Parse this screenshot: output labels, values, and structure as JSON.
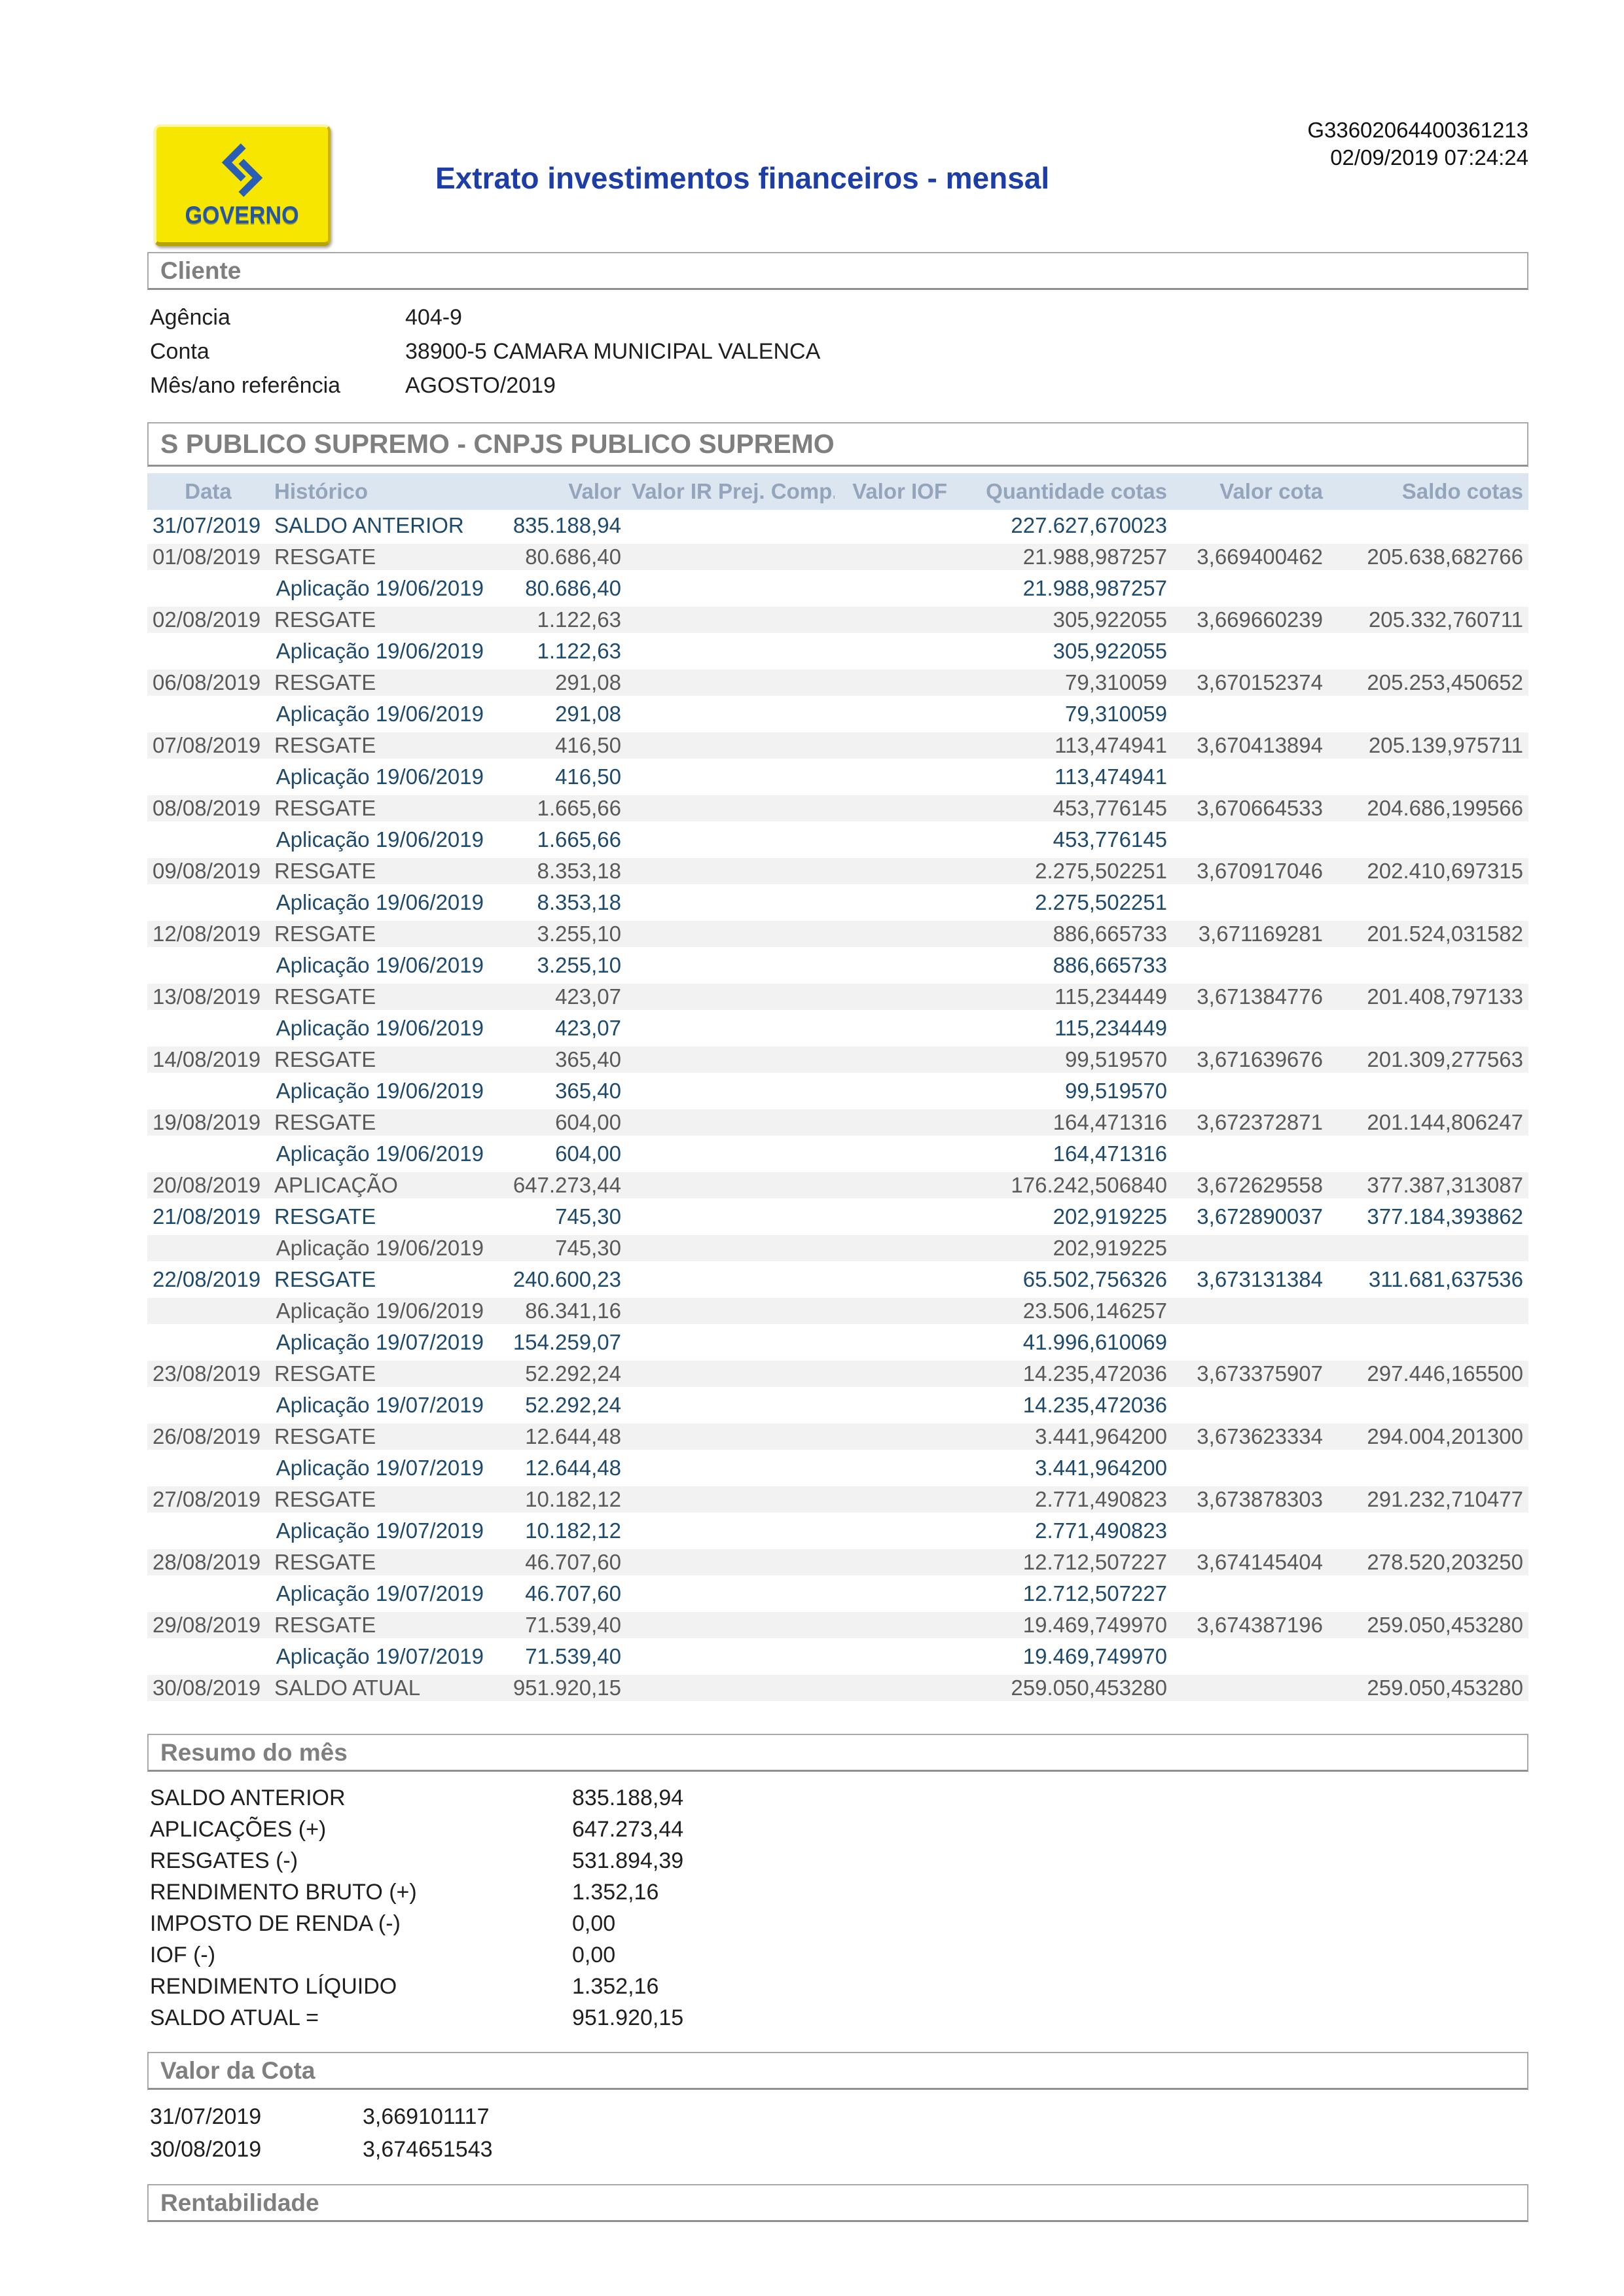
{
  "colors": {
    "title_blue": "#1c3ea6",
    "navy_text": "#1e4a6d",
    "gray_text": "#595959",
    "thead_bg": "#dce6f1",
    "thead_text": "#94a5bb",
    "section_text": "#7f7f7f",
    "zebra_bg": "#f2f2f2",
    "logo_yellow": "#f7e600",
    "logo_blue": "#2a5db5"
  },
  "header": {
    "logo_text": "GOVERNO",
    "title": "Extrato investimentos financeiros - mensal",
    "doc_code": "G33602064400361213",
    "timestamp": "02/09/2019 07:24:24"
  },
  "cliente": {
    "section_title": "Cliente",
    "fields": [
      {
        "label": "Agência",
        "value": "404-9"
      },
      {
        "label": "Conta",
        "value": "38900-5 CAMARA MUNICIPAL VALENCA"
      },
      {
        "label": "Mês/ano referência",
        "value": "AGOSTO/2019"
      }
    ]
  },
  "fund": {
    "section_title": "S PUBLICO SUPREMO - CNPJS PUBLICO SUPREMO",
    "columns": [
      "Data",
      "Histórico",
      "Valor",
      "Valor IR Prej. Comp.",
      "Valor IOF",
      "Quantidade cotas",
      "Valor cota",
      "Saldo cotas"
    ],
    "rows": [
      [
        "31/07/2019",
        "SALDO ANTERIOR",
        "835.188,94",
        "",
        "",
        "227.627,670023",
        "",
        ""
      ],
      [
        "01/08/2019",
        "RESGATE",
        "80.686,40",
        "",
        "",
        "21.988,987257",
        "3,669400462",
        "205.638,682766"
      ],
      [
        "",
        "Aplicação 19/06/2019",
        "80.686,40",
        "",
        "",
        "21.988,987257",
        "",
        ""
      ],
      [
        "02/08/2019",
        "RESGATE",
        "1.122,63",
        "",
        "",
        "305,922055",
        "3,669660239",
        "205.332,760711"
      ],
      [
        "",
        "Aplicação 19/06/2019",
        "1.122,63",
        "",
        "",
        "305,922055",
        "",
        ""
      ],
      [
        "06/08/2019",
        "RESGATE",
        "291,08",
        "",
        "",
        "79,310059",
        "3,670152374",
        "205.253,450652"
      ],
      [
        "",
        "Aplicação 19/06/2019",
        "291,08",
        "",
        "",
        "79,310059",
        "",
        ""
      ],
      [
        "07/08/2019",
        "RESGATE",
        "416,50",
        "",
        "",
        "113,474941",
        "3,670413894",
        "205.139,975711"
      ],
      [
        "",
        "Aplicação 19/06/2019",
        "416,50",
        "",
        "",
        "113,474941",
        "",
        ""
      ],
      [
        "08/08/2019",
        "RESGATE",
        "1.665,66",
        "",
        "",
        "453,776145",
        "3,670664533",
        "204.686,199566"
      ],
      [
        "",
        "Aplicação 19/06/2019",
        "1.665,66",
        "",
        "",
        "453,776145",
        "",
        ""
      ],
      [
        "09/08/2019",
        "RESGATE",
        "8.353,18",
        "",
        "",
        "2.275,502251",
        "3,670917046",
        "202.410,697315"
      ],
      [
        "",
        "Aplicação 19/06/2019",
        "8.353,18",
        "",
        "",
        "2.275,502251",
        "",
        ""
      ],
      [
        "12/08/2019",
        "RESGATE",
        "3.255,10",
        "",
        "",
        "886,665733",
        "3,671169281",
        "201.524,031582"
      ],
      [
        "",
        "Aplicação 19/06/2019",
        "3.255,10",
        "",
        "",
        "886,665733",
        "",
        ""
      ],
      [
        "13/08/2019",
        "RESGATE",
        "423,07",
        "",
        "",
        "115,234449",
        "3,671384776",
        "201.408,797133"
      ],
      [
        "",
        "Aplicação 19/06/2019",
        "423,07",
        "",
        "",
        "115,234449",
        "",
        ""
      ],
      [
        "14/08/2019",
        "RESGATE",
        "365,40",
        "",
        "",
        "99,519570",
        "3,671639676",
        "201.309,277563"
      ],
      [
        "",
        "Aplicação 19/06/2019",
        "365,40",
        "",
        "",
        "99,519570",
        "",
        ""
      ],
      [
        "19/08/2019",
        "RESGATE",
        "604,00",
        "",
        "",
        "164,471316",
        "3,672372871",
        "201.144,806247"
      ],
      [
        "",
        "Aplicação 19/06/2019",
        "604,00",
        "",
        "",
        "164,471316",
        "",
        ""
      ],
      [
        "20/08/2019",
        "APLICAÇÃO",
        "647.273,44",
        "",
        "",
        "176.242,506840",
        "3,672629558",
        "377.387,313087"
      ],
      [
        "21/08/2019",
        "RESGATE",
        "745,30",
        "",
        "",
        "202,919225",
        "3,672890037",
        "377.184,393862"
      ],
      [
        "",
        "Aplicação 19/06/2019",
        "745,30",
        "",
        "",
        "202,919225",
        "",
        ""
      ],
      [
        "22/08/2019",
        "RESGATE",
        "240.600,23",
        "",
        "",
        "65.502,756326",
        "3,673131384",
        "311.681,637536"
      ],
      [
        "",
        "Aplicação 19/06/2019",
        "86.341,16",
        "",
        "",
        "23.506,146257",
        "",
        ""
      ],
      [
        "",
        "Aplicação 19/07/2019",
        "154.259,07",
        "",
        "",
        "41.996,610069",
        "",
        ""
      ],
      [
        "23/08/2019",
        "RESGATE",
        "52.292,24",
        "",
        "",
        "14.235,472036",
        "3,673375907",
        "297.446,165500"
      ],
      [
        "",
        "Aplicação 19/07/2019",
        "52.292,24",
        "",
        "",
        "14.235,472036",
        "",
        ""
      ],
      [
        "26/08/2019",
        "RESGATE",
        "12.644,48",
        "",
        "",
        "3.441,964200",
        "3,673623334",
        "294.004,201300"
      ],
      [
        "",
        "Aplicação 19/07/2019",
        "12.644,48",
        "",
        "",
        "3.441,964200",
        "",
        ""
      ],
      [
        "27/08/2019",
        "RESGATE",
        "10.182,12",
        "",
        "",
        "2.771,490823",
        "3,673878303",
        "291.232,710477"
      ],
      [
        "",
        "Aplicação 19/07/2019",
        "10.182,12",
        "",
        "",
        "2.771,490823",
        "",
        ""
      ],
      [
        "28/08/2019",
        "RESGATE",
        "46.707,60",
        "",
        "",
        "12.712,507227",
        "3,674145404",
        "278.520,203250"
      ],
      [
        "",
        "Aplicação 19/07/2019",
        "46.707,60",
        "",
        "",
        "12.712,507227",
        "",
        ""
      ],
      [
        "29/08/2019",
        "RESGATE",
        "71.539,40",
        "",
        "",
        "19.469,749970",
        "3,674387196",
        "259.050,453280"
      ],
      [
        "",
        "Aplicação 19/07/2019",
        "71.539,40",
        "",
        "",
        "19.469,749970",
        "",
        ""
      ],
      [
        "30/08/2019",
        "SALDO ATUAL",
        "951.920,15",
        "",
        "",
        "259.050,453280",
        "",
        "259.050,453280"
      ]
    ]
  },
  "resumo": {
    "section_title": "Resumo do mês",
    "items": [
      {
        "label": "SALDO ANTERIOR",
        "value": "835.188,94"
      },
      {
        "label": "APLICAÇÕES (+)",
        "value": "647.273,44"
      },
      {
        "label": "RESGATES (-)",
        "value": "531.894,39"
      },
      {
        "label": "RENDIMENTO BRUTO (+)",
        "value": "1.352,16"
      },
      {
        "label": "IMPOSTO DE RENDA (-)",
        "value": "0,00"
      },
      {
        "label": "IOF (-)",
        "value": "0,00"
      },
      {
        "label": "RENDIMENTO LÍQUIDO",
        "value": "1.352,16"
      },
      {
        "label": "SALDO ATUAL =",
        "value": "951.920,15"
      }
    ]
  },
  "valor_cota": {
    "section_title": "Valor da Cota",
    "rows": [
      {
        "date": "31/07/2019",
        "value": "3,669101117"
      },
      {
        "date": "30/08/2019",
        "value": "3,674651543"
      }
    ]
  },
  "rentabilidade": {
    "section_title": "Rentabilidade"
  }
}
